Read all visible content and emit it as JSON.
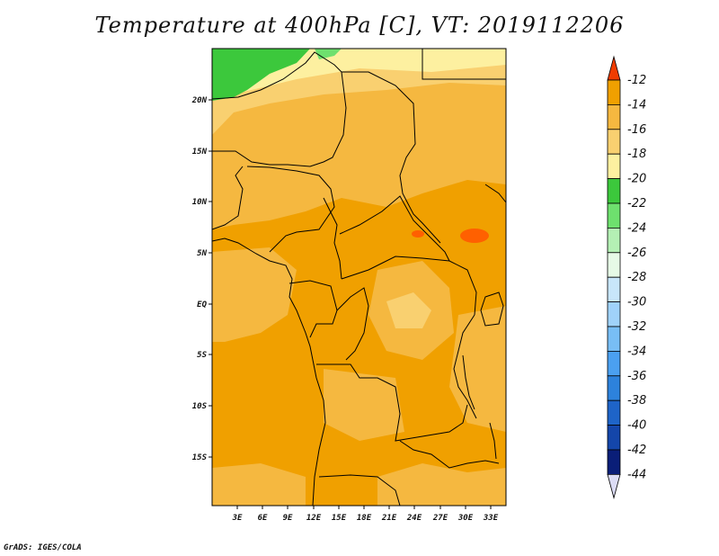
{
  "title": "Temperature at 400hPa [C], VT: 2019112206",
  "footer": "GrADS: IGES/COLA",
  "map": {
    "lat_labels": [
      "20N",
      "15N",
      "10N",
      "5N",
      "EQ",
      "5S",
      "10S",
      "15S"
    ],
    "lon_labels": [
      "3E",
      "6E",
      "9E",
      "12E",
      "15E",
      "18E",
      "21E",
      "24E",
      "27E",
      "30E",
      "33E"
    ],
    "colors": {
      "dark_orange": "#f0a000",
      "orange": "#f5b840",
      "light_orange": "#f9d070",
      "pale_yellow": "#fdf0a0",
      "green": "#3cc83c",
      "red_orange": "#ff6000",
      "border": "#000000"
    }
  },
  "colorbar": {
    "labels": [
      "-12",
      "-14",
      "-16",
      "-18",
      "-20",
      "-22",
      "-24",
      "-26",
      "-28",
      "-30",
      "-32",
      "-34",
      "-36",
      "-38",
      "-40",
      "-42",
      "-44"
    ],
    "colors": [
      "#ff6000",
      "#f0a000",
      "#f5b840",
      "#f9d070",
      "#fdf0a0",
      "#3cc83c",
      "#6ee06e",
      "#b4f0b4",
      "#e6fae6",
      "#c8e6fa",
      "#a0d2fa",
      "#78bef5",
      "#4ba0f0",
      "#2d82dc",
      "#1e64c8",
      "#1446aa",
      "#0a1e78"
    ],
    "top_arrow_color": "#f03c00",
    "bottom_arrow_color": "#dcdcf5"
  }
}
